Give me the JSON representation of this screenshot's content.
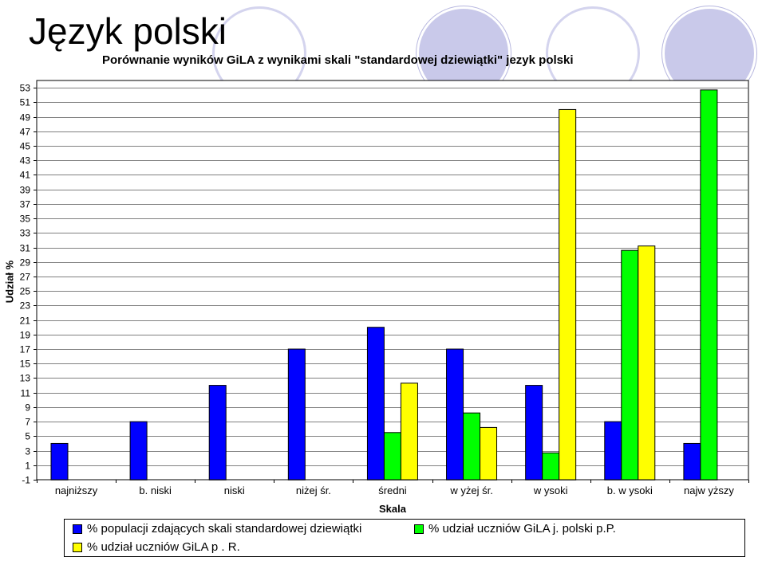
{
  "page": {
    "heading": "Język polski"
  },
  "chart_data": {
    "type": "bar",
    "title": "Porównanie wyników GiLA z wynikami skali \"standardowej dziewiątki\" jezyk polski",
    "xlabel": "Skala",
    "ylabel": "Udział %",
    "ylim": [
      -1,
      54
    ],
    "y_ticks": [
      53,
      51,
      49,
      47,
      45,
      43,
      41,
      39,
      37,
      35,
      33,
      31,
      29,
      27,
      25,
      23,
      21,
      19,
      17,
      15,
      13,
      11,
      9,
      7,
      5,
      3,
      1,
      -1
    ],
    "grid": true,
    "legend_position": "bottom",
    "categories": [
      "najniższy",
      "b. niski",
      "niski",
      "niżej śr.",
      "średni",
      "w yżej śr.",
      "w ysoki",
      "b. w ysoki",
      "najw yższy"
    ],
    "series": [
      {
        "name": "% populacji zdających skali standardowej dziewiątki",
        "color": "#0000ff",
        "values": [
          4,
          7,
          12,
          17,
          20,
          17,
          12,
          7,
          4
        ]
      },
      {
        "name": "% udział uczniów GiLA j. polski p.P.",
        "color": "#00ff00",
        "values": [
          null,
          null,
          null,
          null,
          5.5,
          8.2,
          2.7,
          30.6,
          52.7
        ]
      },
      {
        "name": "% udział uczniów GiLA p . R.",
        "color": "#ffff00",
        "values": [
          null,
          null,
          null,
          null,
          12.3,
          6.2,
          50,
          31.2,
          null
        ]
      }
    ]
  }
}
